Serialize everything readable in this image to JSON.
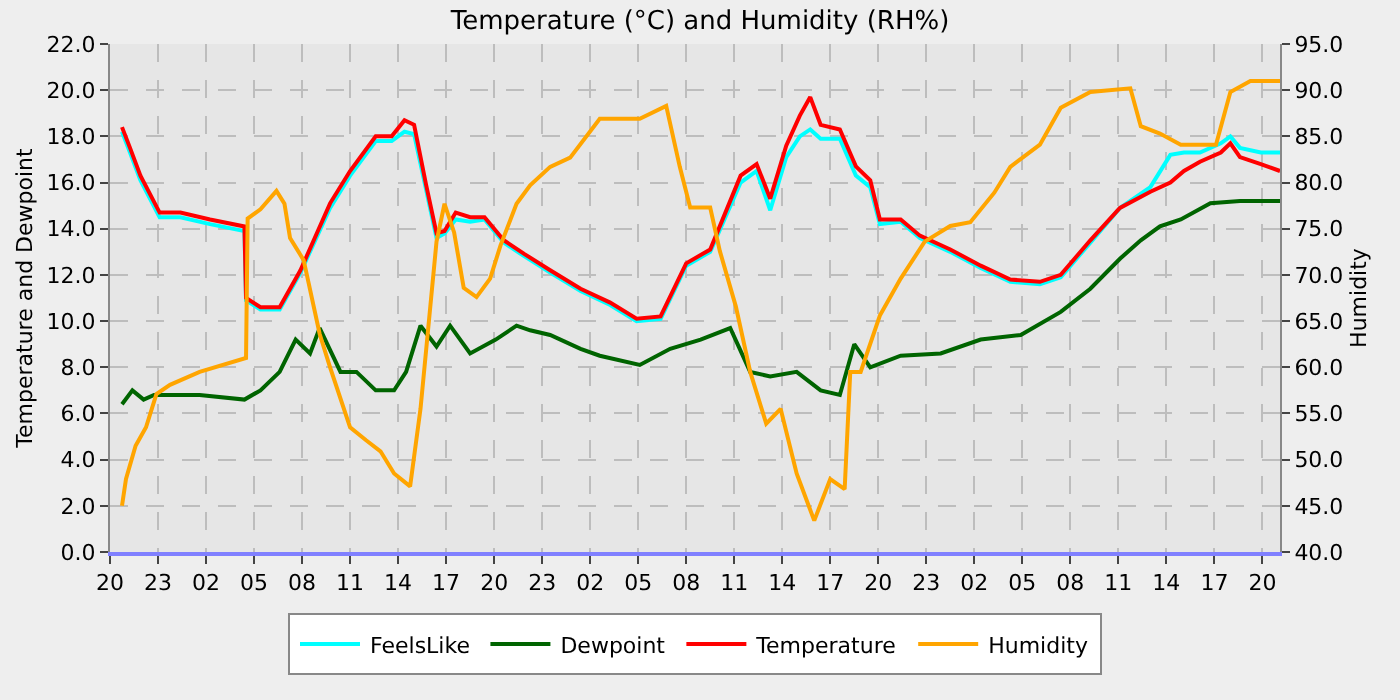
{
  "chart_data": {
    "type": "line",
    "title": "Temperature (°C) and Humidity (RH%)",
    "ylabel": "Temperature and Dewpoint",
    "y2label": "Humidity",
    "xlim": [
      "--01-01T20:00",
      "--01-04T21:06"
    ],
    "xticks": [
      {
        "value": "--01-01T20:00",
        "label": "20"
      },
      {
        "value": "--01-01T23:00",
        "label": "23"
      },
      {
        "value": "--01-02T02:00",
        "label": "02"
      },
      {
        "value": "--01-02T05:00",
        "label": "05"
      },
      {
        "value": "--01-02T08:00",
        "label": "08"
      },
      {
        "value": "--01-02T11:00",
        "label": "11"
      },
      {
        "value": "--01-02T14:00",
        "label": "14"
      },
      {
        "value": "--01-02T17:00",
        "label": "17"
      },
      {
        "value": "--01-02T20:00",
        "label": "20"
      },
      {
        "value": "--01-02T23:00",
        "label": "23"
      },
      {
        "value": "--01-03T02:00",
        "label": "02"
      },
      {
        "value": "--01-03T05:00",
        "label": "05"
      },
      {
        "value": "--01-03T08:00",
        "label": "08"
      },
      {
        "value": "--01-03T11:00",
        "label": "11"
      },
      {
        "value": "--01-03T14:00",
        "label": "14"
      },
      {
        "value": "--01-03T17:00",
        "label": "17"
      },
      {
        "value": "--01-03T20:00",
        "label": "20"
      },
      {
        "value": "--01-03T23:00",
        "label": "23"
      },
      {
        "value": "--01-04T02:00",
        "label": "02"
      },
      {
        "value": "--01-04T05:00",
        "label": "05"
      },
      {
        "value": "--01-04T08:00",
        "label": "08"
      },
      {
        "value": "--01-04T11:00",
        "label": "11"
      },
      {
        "value": "--01-04T14:00",
        "label": "14"
      },
      {
        "value": "--01-04T17:00",
        "label": "17"
      },
      {
        "value": "--01-04T20:00",
        "label": "20"
      }
    ],
    "ylim": [
      0,
      22
    ],
    "yticks": [
      {
        "value": 0,
        "label": "0.0"
      },
      {
        "value": 2,
        "label": "2.0"
      },
      {
        "value": 4,
        "label": "4.0"
      },
      {
        "value": 6,
        "label": "6.0"
      },
      {
        "value": 8,
        "label": "8.0"
      },
      {
        "value": 10,
        "label": "10.0"
      },
      {
        "value": 12,
        "label": "12.0"
      },
      {
        "value": 14,
        "label": "14.0"
      },
      {
        "value": 16,
        "label": "16.0"
      },
      {
        "value": 18,
        "label": "18.0"
      },
      {
        "value": 20,
        "label": "20.0"
      },
      {
        "value": 22,
        "label": "22.0"
      }
    ],
    "y2lim": [
      40,
      95
    ],
    "y2ticks": [
      {
        "value": 40,
        "label": "40.0"
      },
      {
        "value": 45,
        "label": "45.0"
      },
      {
        "value": 50,
        "label": "50.0"
      },
      {
        "value": 55,
        "label": "55.0"
      },
      {
        "value": 60,
        "label": "60.0"
      },
      {
        "value": 65,
        "label": "65.0"
      },
      {
        "value": 70,
        "label": "70.0"
      },
      {
        "value": 75,
        "label": "75.0"
      },
      {
        "value": 80,
        "label": "80.0"
      },
      {
        "value": 85,
        "label": "85.0"
      },
      {
        "value": 90,
        "label": "90.0"
      },
      {
        "value": 95,
        "label": "95.0"
      }
    ],
    "grid": true,
    "legend": "bottom",
    "marker": "none",
    "line_style": "solid",
    "series": [
      {
        "name": "FeelsLike",
        "color": "#00ffff",
        "x": [
          "--01-01T20:45",
          "--01-01T21:15",
          "--01-01T21:54",
          "--01-01T23:06",
          "--01-02T00:24",
          "--01-02T02:15",
          "--01-02T04:24",
          "--01-02T04:30",
          "--01-02T05:24",
          "--01-02T06:36",
          "--01-02T07:54",
          "--01-02T09:45",
          "--01-02T11:00",
          "--01-02T12:36",
          "--01-02T13:36",
          "--01-02T14:24",
          "--01-02T15:00",
          "--01-02T15:45",
          "--01-02T16:24",
          "--01-02T16:54",
          "--01-02T17:36",
          "--01-02T18:30",
          "--01-02T19:24",
          "--01-02T20:36",
          "--01-02T21:54",
          "--01-02T23:30",
          "--01-03T01:24",
          "--01-03T03:15",
          "--01-03T04:54",
          "--01-03T06:24",
          "--01-03T08:00",
          "--01-03T09:30",
          "--01-03T11:24",
          "--01-03T12:24",
          "--01-03T13:15",
          "--01-03T14:15",
          "--01-03T15:06",
          "--01-03T15:45",
          "--01-03T16:24",
          "--01-03T17:36",
          "--01-03T18:36",
          "--01-03T19:30",
          "--01-03T20:06",
          "--01-03T21:24",
          "--01-03T22:36",
          "--01-04T00:30",
          "--01-04T02:24",
          "--01-04T04:15",
          "--01-04T06:06",
          "--01-04T07:24",
          "--01-04T09:15",
          "--01-04T11:06",
          "--01-04T13:00",
          "--01-04T14:15",
          "--01-04T15:06",
          "--01-04T16:06",
          "--01-04T17:24",
          "--01-04T18:00",
          "--01-04T18:36",
          "--01-04T19:54",
          "--01-04T21:06"
        ],
        "values": [
          18.2,
          17.3,
          16.1,
          14.5,
          14.5,
          14.2,
          13.9,
          10.9,
          10.5,
          10.5,
          12.1,
          14.9,
          16.3,
          17.8,
          17.8,
          18.2,
          18.1,
          15.7,
          13.6,
          13.8,
          14.4,
          14.3,
          14.4,
          13.4,
          12.8,
          12.1,
          11.3,
          10.7,
          10.0,
          10.1,
          12.4,
          13.0,
          16.0,
          16.5,
          14.8,
          17.1,
          18.0,
          18.3,
          17.9,
          17.9,
          16.3,
          15.8,
          14.2,
          14.3,
          13.6,
          13.0,
          12.3,
          11.7,
          11.6,
          11.9,
          13.4,
          14.9,
          15.8,
          17.2,
          17.3,
          17.3,
          17.7,
          18.0,
          17.5,
          17.3,
          17.3
        ]
      },
      {
        "name": "Dewpoint",
        "color": "#006400",
        "x": [
          "--01-01T20:45",
          "--01-01T21:24",
          "--01-01T22:06",
          "--01-01T22:45",
          "--01-02T01:36",
          "--01-02T04:24",
          "--01-02T05:24",
          "--01-02T06:36",
          "--01-02T07:36",
          "--01-02T08:30",
          "--01-02T09:06",
          "--01-02T10:24",
          "--01-02T11:24",
          "--01-02T12:36",
          "--01-02T13:45",
          "--01-02T14:30",
          "--01-02T15:24",
          "--01-02T16:24",
          "--01-02T17:15",
          "--01-02T18:30",
          "--01-02T20:06",
          "--01-02T21:24",
          "--01-02T22:15",
          "--01-02T23:30",
          "--01-03T01:24",
          "--01-03T02:36",
          "--01-03T05:06",
          "--01-03T07:00",
          "--01-03T08:54",
          "--01-03T10:45",
          "--01-03T12:00",
          "--01-03T13:15",
          "--01-03T14:54",
          "--01-03T16:24",
          "--01-03T17:36",
          "--01-03T18:30",
          "--01-03T19:30",
          "--01-03T21:24",
          "--01-03T23:54",
          "--01-04T02:24",
          "--01-04T04:54",
          "--01-04T07:24",
          "--01-04T09:15",
          "--01-04T11:06",
          "--01-04T12:24",
          "--01-04T13:36",
          "--01-04T14:54",
          "--01-04T16:45",
          "--01-04T18:36",
          "--01-04T21:06"
        ],
        "values": [
          6.4,
          7.0,
          6.6,
          6.8,
          6.8,
          6.6,
          7.0,
          7.8,
          9.2,
          8.6,
          9.7,
          7.8,
          7.8,
          7.0,
          7.0,
          7.8,
          9.8,
          8.9,
          9.8,
          8.6,
          9.2,
          9.8,
          9.6,
          9.4,
          8.8,
          8.5,
          8.1,
          8.8,
          9.2,
          9.7,
          7.8,
          7.6,
          7.8,
          7.0,
          6.8,
          9.0,
          8.0,
          8.5,
          8.6,
          9.2,
          9.4,
          10.4,
          11.4,
          12.7,
          13.5,
          14.1,
          14.4,
          15.1,
          15.2,
          15.2
        ]
      },
      {
        "name": "Temperature",
        "color": "#ff0000",
        "x": [
          "--01-01T20:45",
          "--01-01T21:15",
          "--01-01T21:54",
          "--01-01T23:06",
          "--01-02T00:24",
          "--01-02T02:15",
          "--01-02T04:24",
          "--01-02T04:30",
          "--01-02T05:24",
          "--01-02T06:36",
          "--01-02T07:54",
          "--01-02T09:45",
          "--01-02T11:00",
          "--01-02T12:36",
          "--01-02T13:36",
          "--01-02T14:24",
          "--01-02T15:00",
          "--01-02T15:45",
          "--01-02T16:24",
          "--01-02T16:54",
          "--01-02T17:36",
          "--01-02T18:30",
          "--01-02T19:24",
          "--01-02T20:36",
          "--01-02T21:54",
          "--01-02T23:30",
          "--01-03T01:24",
          "--01-03T03:15",
          "--01-03T04:54",
          "--01-03T06:24",
          "--01-03T08:00",
          "--01-03T09:30",
          "--01-03T11:24",
          "--01-03T12:24",
          "--01-03T13:15",
          "--01-03T14:15",
          "--01-03T15:06",
          "--01-03T15:45",
          "--01-03T16:24",
          "--01-03T17:36",
          "--01-03T18:36",
          "--01-03T19:30",
          "--01-03T20:06",
          "--01-03T21:24",
          "--01-03T22:36",
          "--01-04T00:30",
          "--01-04T02:24",
          "--01-04T04:15",
          "--01-04T06:06",
          "--01-04T07:24",
          "--01-04T09:15",
          "--01-04T11:06",
          "--01-04T13:00",
          "--01-04T14:15",
          "--01-04T15:06",
          "--01-04T16:06",
          "--01-04T17:24",
          "--01-04T18:00",
          "--01-04T18:36",
          "--01-04T19:54",
          "--01-04T21:06"
        ],
        "values": [
          18.4,
          17.5,
          16.3,
          14.7,
          14.7,
          14.4,
          14.1,
          11.0,
          10.6,
          10.6,
          12.2,
          15.1,
          16.5,
          18.0,
          18.0,
          18.7,
          18.5,
          15.9,
          13.8,
          13.9,
          14.7,
          14.5,
          14.5,
          13.5,
          12.9,
          12.2,
          11.4,
          10.8,
          10.1,
          10.2,
          12.5,
          13.1,
          16.3,
          16.8,
          15.3,
          17.6,
          18.9,
          19.7,
          18.5,
          18.3,
          16.7,
          16.1,
          14.4,
          14.4,
          13.7,
          13.1,
          12.4,
          11.8,
          11.7,
          12.0,
          13.5,
          14.9,
          15.6,
          16.0,
          16.5,
          16.9,
          17.3,
          17.7,
          17.1,
          16.8,
          16.5
        ]
      },
      {
        "name": "Humidity",
        "color": "#ffa500",
        "axis": "y2",
        "x": [
          "--01-01T20:45",
          "--01-01T21:00",
          "--01-01T21:36",
          "--01-01T22:15",
          "--01-01T22:54",
          "--01-01T23:45",
          "--01-02T01:36",
          "--01-02T04:30",
          "--01-02T04:36",
          "--01-02T05:24",
          "--01-02T06:24",
          "--01-02T06:54",
          "--01-02T07:15",
          "--01-02T08:06",
          "--01-02T09:06",
          "--01-02T09:45",
          "--01-02T11:00",
          "--01-02T12:00",
          "--01-02T12:54",
          "--01-02T13:45",
          "--01-02T14:45",
          "--01-02T15:24",
          "--01-02T16:24",
          "--01-02T16:54",
          "--01-02T17:30",
          "--01-02T18:06",
          "--01-02T18:54",
          "--01-02T19:45",
          "--01-02T20:24",
          "--01-02T21:24",
          "--01-02T22:15",
          "--01-02T23:30",
          "--01-03T00:45",
          "--01-03T02:36",
          "--01-03T05:06",
          "--01-03T06:45",
          "--01-03T07:36",
          "--01-03T08:15",
          "--01-03T09:30",
          "--01-03T10:06",
          "--01-03T11:06",
          "--01-03T12:00",
          "--01-03T13:00",
          "--01-03T13:54",
          "--01-03T14:54",
          "--01-03T16:00",
          "--01-03T17:00",
          "--01-03T17:54",
          "--01-03T18:15",
          "--01-03T18:54",
          "--01-03T20:06",
          "--01-03T21:24",
          "--01-03T22:54",
          "--01-04T00:30",
          "--01-04T01:45",
          "--01-04T03:15",
          "--01-04T04:15",
          "--01-04T06:06",
          "--01-04T07:24",
          "--01-04T09:15",
          "--01-04T11:45",
          "--01-04T12:24",
          "--01-04T13:36",
          "--01-04T14:54",
          "--01-04T16:06",
          "--01-04T17:06",
          "--01-04T18:00",
          "--01-04T19:15",
          "--01-04T21:06"
        ],
        "values": [
          45.0,
          47.9,
          51.5,
          53.5,
          57.1,
          58.1,
          59.5,
          61.0,
          76.1,
          77.1,
          79.1,
          77.7,
          74.0,
          71.6,
          63.6,
          60.0,
          53.5,
          52.1,
          50.9,
          48.5,
          47.1,
          55.5,
          73.6,
          77.7,
          74.6,
          68.6,
          67.6,
          69.6,
          73.2,
          77.7,
          79.7,
          81.7,
          82.7,
          86.9,
          86.9,
          88.3,
          81.7,
          77.3,
          77.3,
          72.6,
          66.6,
          59.5,
          53.9,
          55.5,
          48.5,
          43.4,
          47.9,
          46.8,
          59.5,
          59.5,
          65.6,
          69.6,
          73.6,
          75.3,
          75.7,
          78.9,
          81.7,
          84.1,
          88.1,
          89.8,
          90.2,
          86.1,
          85.3,
          84.1,
          84.1,
          84.1,
          89.8,
          91.0,
          91.0
        ]
      }
    ]
  }
}
